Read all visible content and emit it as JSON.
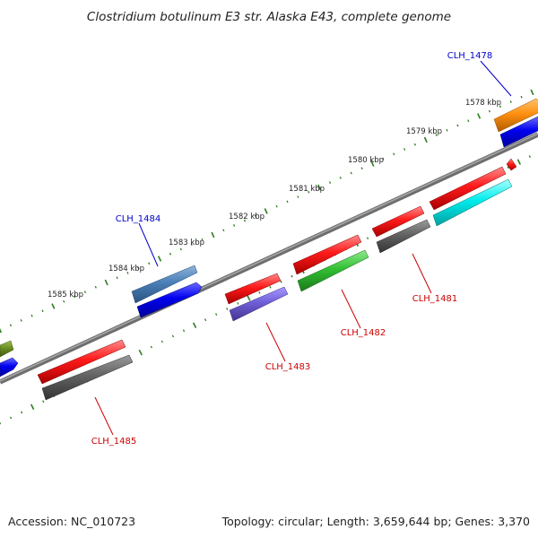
{
  "title": "Clostridium botulinum E3 str. Alaska E43, complete genome",
  "footer": {
    "accession": "Accession: NC_010723",
    "summary": "Topology: circular; Length: 3,659,644 bp; Genes: 3,370"
  },
  "colors": {
    "forward_label": "#0000cc",
    "reverse_label": "#cc0000",
    "backbone": "#808080",
    "tick": "#2e7d1e"
  },
  "scale_labels": [
    "1578 kbp",
    "1579 kbp",
    "1580 kbp",
    "1581 kbp",
    "1582 kbp",
    "1583 kbp",
    "1584 kbp",
    "1585 kbp"
  ],
  "gene_labels": [
    {
      "name": "CLH_1478",
      "strand": "forward"
    },
    {
      "name": "CLH_1484",
      "strand": "forward"
    },
    {
      "name": "CLH_1481",
      "strand": "reverse"
    },
    {
      "name": "CLH_1482",
      "strand": "reverse"
    },
    {
      "name": "CLH_1483",
      "strand": "reverse"
    },
    {
      "name": "CLH_1485",
      "strand": "reverse"
    }
  ]
}
